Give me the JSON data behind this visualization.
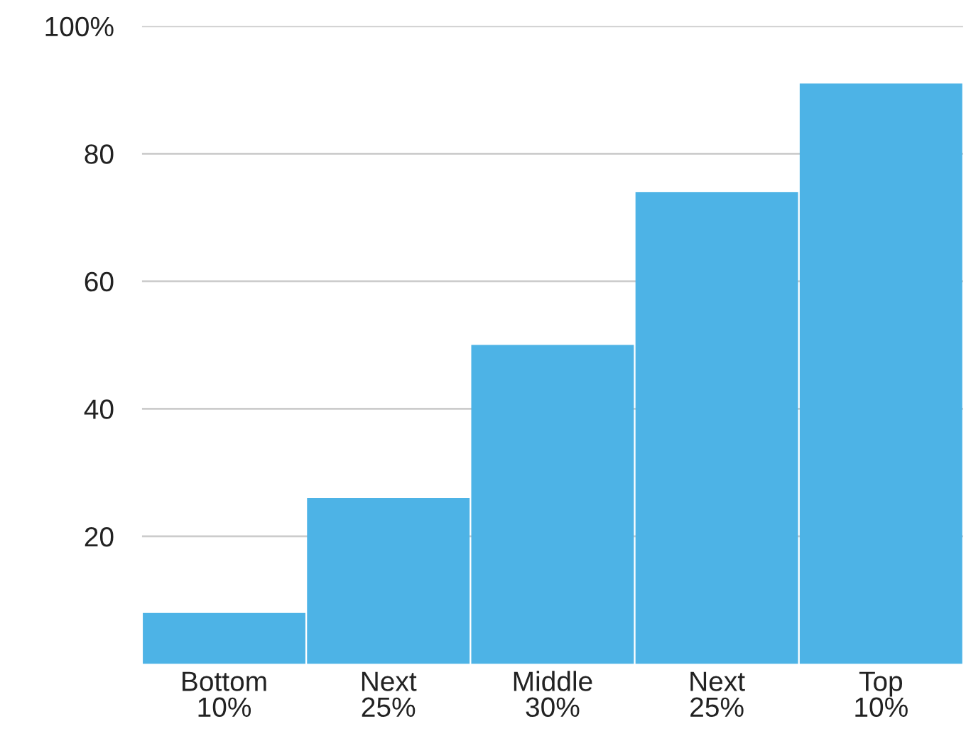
{
  "chart_data": {
    "type": "bar",
    "categories": [
      "Bottom\n10%",
      "Next\n25%",
      "Middle\n30%",
      "Next\n25%",
      "Top\n10%"
    ],
    "values": [
      8,
      26,
      50,
      74,
      91
    ],
    "color": "#4db3e6",
    "ylim": [
      0,
      100
    ],
    "yticks": [
      20,
      40,
      60,
      80,
      {
        "value": 100,
        "label": "100%"
      }
    ],
    "grid": "y"
  }
}
